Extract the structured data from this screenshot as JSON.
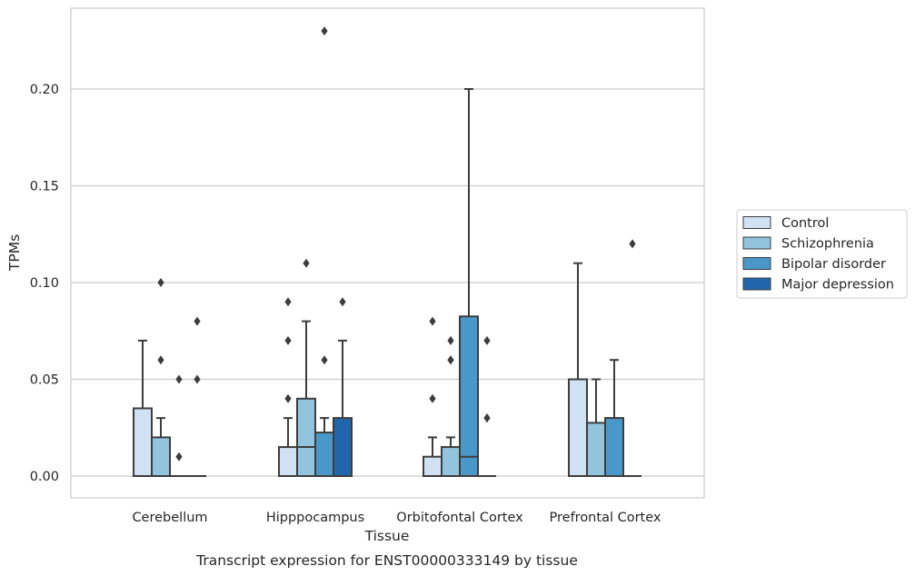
{
  "chart_data": {
    "type": "box",
    "xlabel": "Tissue",
    "ylabel": "TPMs",
    "caption": "Transcript expression for ENST00000333149 by tissue",
    "categories": [
      "Cerebellum",
      "Hipppocampus",
      "Orbitofontal Cortex",
      "Prefrontal Cortex"
    ],
    "ylim": [
      -0.011,
      0.24
    ],
    "yticks": [
      0.0,
      0.05,
      0.1,
      0.15,
      0.2
    ],
    "ytick_labels": [
      "0.00",
      "0.05",
      "0.10",
      "0.15",
      "0.20"
    ],
    "grid": true,
    "legend_position": "right",
    "series": [
      {
        "name": "Control",
        "color": "#cfe1f2",
        "boxes": [
          {
            "q1": 0.0,
            "median": 0.0,
            "q3": 0.035,
            "whisker_low": 0.0,
            "whisker_high": 0.07,
            "outliers": []
          },
          {
            "q1": 0.0,
            "median": 0.0,
            "q3": 0.015,
            "whisker_low": 0.0,
            "whisker_high": 0.03,
            "outliers": [
              0.04,
              0.07,
              0.09
            ]
          },
          {
            "q1": 0.0,
            "median": 0.0,
            "q3": 0.01,
            "whisker_low": 0.0,
            "whisker_high": 0.02,
            "outliers": [
              0.04,
              0.08
            ]
          },
          {
            "q1": 0.0,
            "median": 0.0,
            "q3": 0.05,
            "whisker_low": 0.0,
            "whisker_high": 0.11,
            "outliers": []
          }
        ]
      },
      {
        "name": "Schizophrenia",
        "color": "#93c4de",
        "boxes": [
          {
            "q1": 0.0,
            "median": 0.0,
            "q3": 0.02,
            "whisker_low": 0.0,
            "whisker_high": 0.03,
            "outliers": [
              0.06,
              0.1
            ]
          },
          {
            "q1": 0.0,
            "median": 0.015,
            "q3": 0.04,
            "whisker_low": 0.0,
            "whisker_high": 0.08,
            "outliers": [
              0.11
            ]
          },
          {
            "q1": 0.0,
            "median": 0.0,
            "q3": 0.015,
            "whisker_low": 0.0,
            "whisker_high": 0.02,
            "outliers": [
              0.06,
              0.06,
              0.07
            ]
          },
          {
            "q1": 0.0,
            "median": 0.0,
            "q3": 0.0275,
            "whisker_low": 0.0,
            "whisker_high": 0.05,
            "outliers": []
          }
        ]
      },
      {
        "name": "Bipolar disorder",
        "color": "#4a98c9",
        "boxes": [
          {
            "q1": 0.0,
            "median": 0.0,
            "q3": 0.0,
            "whisker_low": 0.0,
            "whisker_high": 0.0,
            "outliers": [
              0.01,
              0.05
            ]
          },
          {
            "q1": 0.0,
            "median": 0.0,
            "q3": 0.0225,
            "whisker_low": 0.0,
            "whisker_high": 0.03,
            "outliers": [
              0.06,
              0.23
            ]
          },
          {
            "q1": 0.0,
            "median": 0.01,
            "q3": 0.0825,
            "whisker_low": 0.0,
            "whisker_high": 0.2,
            "outliers": []
          },
          {
            "q1": 0.0,
            "median": 0.0,
            "q3": 0.03,
            "whisker_low": 0.0,
            "whisker_high": 0.06,
            "outliers": []
          }
        ]
      },
      {
        "name": "Major depression",
        "color": "#2166ac",
        "boxes": [
          {
            "q1": 0.0,
            "median": 0.0,
            "q3": 0.0,
            "whisker_low": 0.0,
            "whisker_high": 0.0,
            "outliers": [
              0.05,
              0.08
            ]
          },
          {
            "q1": 0.0,
            "median": 0.0,
            "q3": 0.03,
            "whisker_low": 0.0,
            "whisker_high": 0.07,
            "outliers": [
              0.09
            ]
          },
          {
            "q1": 0.0,
            "median": 0.0,
            "q3": 0.0,
            "whisker_low": 0.0,
            "whisker_high": 0.0,
            "outliers": [
              0.03,
              0.03,
              0.07
            ]
          },
          {
            "q1": 0.0,
            "median": 0.0,
            "q3": 0.0,
            "whisker_low": 0.0,
            "whisker_high": 0.0,
            "outliers": [
              0.12
            ]
          }
        ]
      }
    ]
  }
}
